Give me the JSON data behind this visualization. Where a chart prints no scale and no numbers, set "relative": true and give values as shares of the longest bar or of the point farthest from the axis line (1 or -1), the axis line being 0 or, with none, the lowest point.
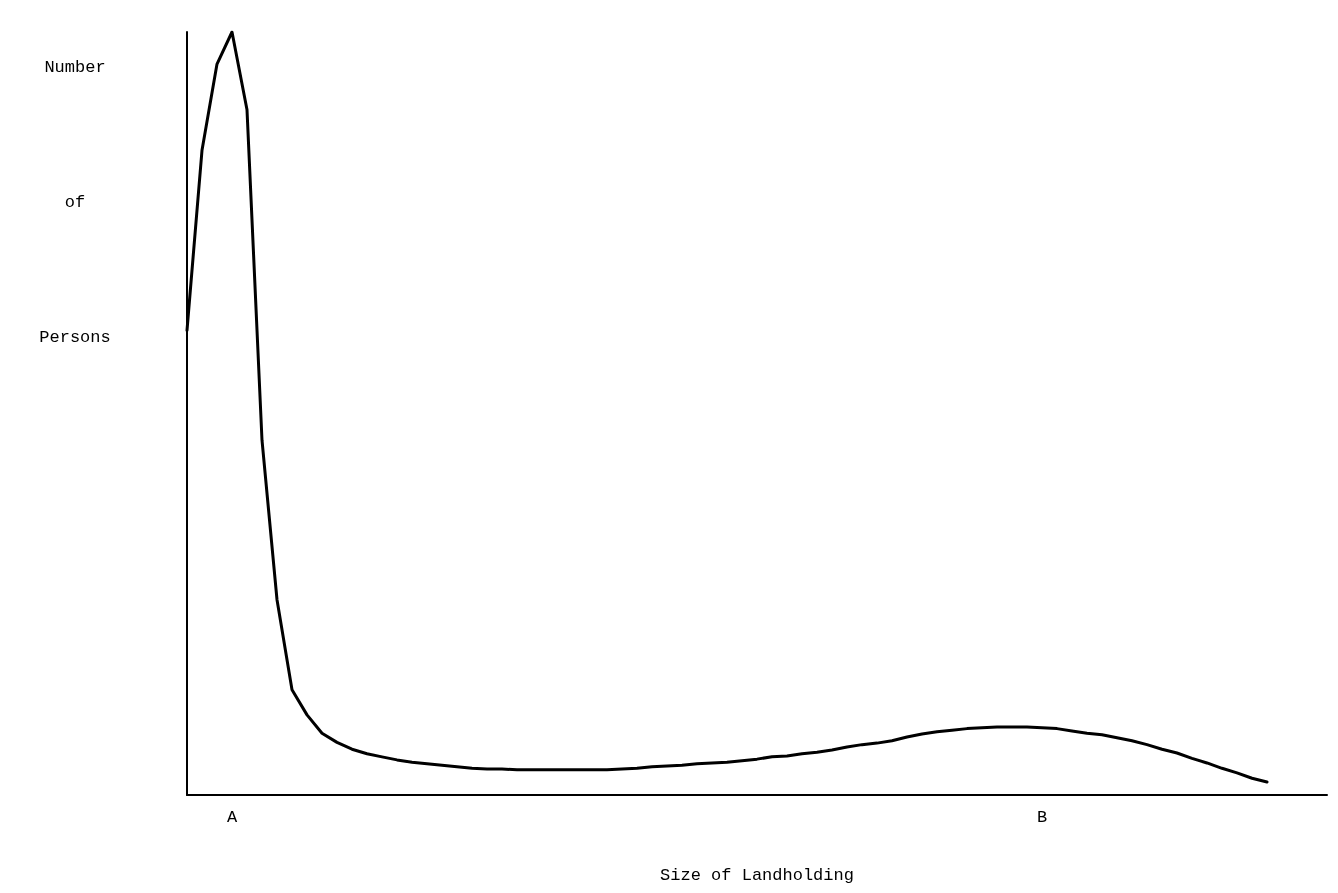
{
  "chart_data": {
    "type": "line",
    "xlabel": "Size of Landholding",
    "ylabel": "Number of Persons",
    "relative": true,
    "color": "#000000",
    "marker": "none",
    "line_style": "solid",
    "categories": [
      null,
      null,
      null,
      "A",
      null,
      null,
      null,
      null,
      null,
      null,
      null,
      null,
      null,
      null,
      null,
      null,
      null,
      null,
      null,
      null,
      null,
      null,
      null,
      null,
      null,
      null,
      null,
      null,
      null,
      null,
      null,
      null,
      null,
      null,
      null,
      null,
      null,
      null,
      null,
      null,
      null,
      null,
      null,
      null,
      null,
      null,
      null,
      null,
      null,
      null,
      null,
      null,
      null,
      null,
      null,
      null,
      null,
      "B",
      null,
      null,
      null,
      null,
      null,
      null,
      null,
      null,
      null,
      null,
      null,
      null,
      null,
      null,
      null,
      null,
      null,
      null,
      null
    ],
    "values": [
      0.609,
      0.845,
      0.958,
      1.0,
      0.898,
      0.465,
      0.256,
      0.138,
      0.105,
      0.081,
      0.069,
      0.06,
      0.054,
      0.05,
      0.046,
      0.043,
      0.041,
      0.039,
      0.037,
      0.035,
      0.034,
      0.034,
      0.033,
      0.033,
      0.033,
      0.033,
      0.033,
      0.033,
      0.033,
      0.034,
      0.035,
      0.037,
      0.038,
      0.039,
      0.041,
      0.042,
      0.043,
      0.045,
      0.047,
      0.05,
      0.051,
      0.054,
      0.056,
      0.059,
      0.063,
      0.066,
      0.068,
      0.071,
      0.076,
      0.08,
      0.083,
      0.085,
      0.087,
      0.088,
      0.089,
      0.089,
      0.089,
      0.088,
      0.087,
      0.084,
      0.081,
      0.079,
      0.075,
      0.071,
      0.066,
      0.06,
      0.055,
      0.048,
      0.042,
      0.035,
      0.029,
      0.022,
      0.017,
      null,
      null,
      null,
      null
    ]
  }
}
